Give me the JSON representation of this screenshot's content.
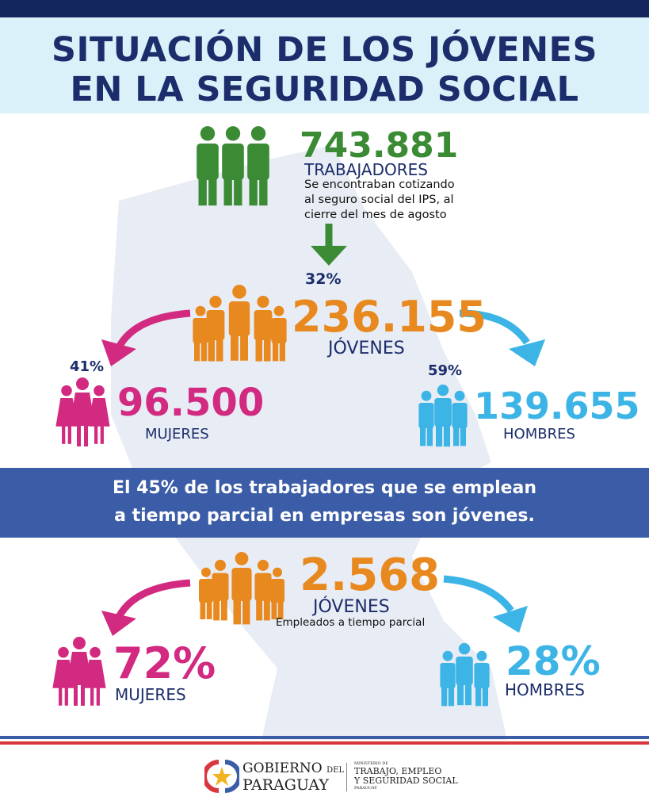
{
  "colors": {
    "navy": "#1b2d6b",
    "green": "#3b8b35",
    "orange": "#e8891f",
    "magenta": "#d12a80",
    "cyan": "#3cb4e6",
    "band": "#3b5ca6"
  },
  "title": {
    "line1": "SITUACIÓN DE LOS JÓVENES",
    "line2": "EN LA SEGURIDAD SOCIAL"
  },
  "workers": {
    "value": "743.881",
    "label": "TRABAJADORES",
    "desc1": "Se encontraban cotizando",
    "desc2": "al seguro social del IPS, al",
    "desc3": "cierre del mes de agosto",
    "icon": "group-of-workers-icon"
  },
  "youth": {
    "percent": "32%",
    "value": "236.155",
    "label": "JÓVENES"
  },
  "women": {
    "percent": "41%",
    "value": "96.500",
    "label": "MUJERES"
  },
  "men": {
    "percent": "59%",
    "value": "139.655",
    "label": "HOMBRES"
  },
  "banner": {
    "line1": "El 45% de los trabajadores que se emplean",
    "line2": "a tiempo parcial en empresas son jóvenes."
  },
  "parttime": {
    "value": "2.568",
    "label": "JÓVENES",
    "desc": "Empleados a tiempo parcial"
  },
  "parttime_women": {
    "value": "72%",
    "label": "MUJERES"
  },
  "parttime_men": {
    "value": "28%",
    "label": "HOMBRES"
  },
  "footer": {
    "gov1": "GOBIERNO",
    "gov_del": "DEL",
    "gov2": "PARAGUAY",
    "min_small": "MINISTERIO DE",
    "min1": "TRABAJO, EMPLEO",
    "min2": "Y SEGURIDAD SOCIAL",
    "min_country": "PARAGUAY"
  }
}
